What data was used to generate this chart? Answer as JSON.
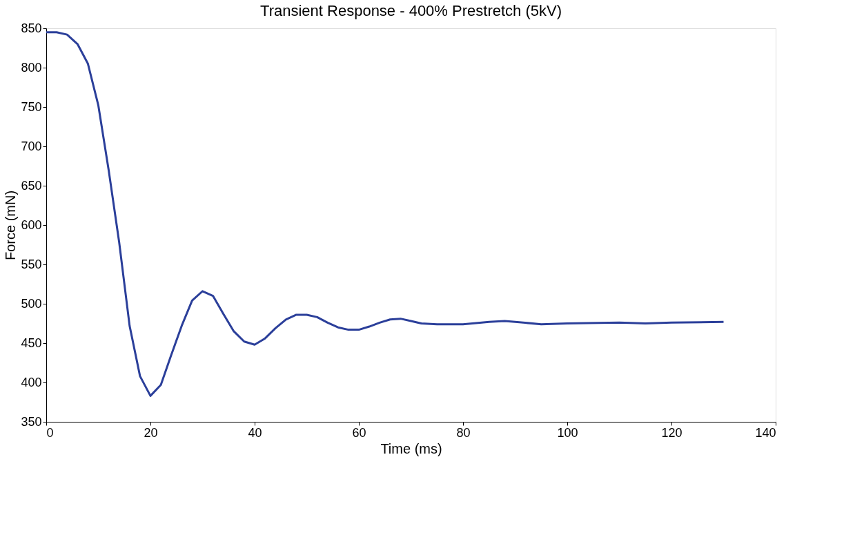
{
  "chart_data": {
    "type": "line",
    "title": "Transient Response - 400% Prestretch (5kV)",
    "xlabel": "Time (ms)",
    "ylabel": "Force (mN)",
    "x": [
      0,
      2,
      4,
      6,
      8,
      10,
      12,
      14,
      16,
      18,
      20,
      22,
      24,
      26,
      28,
      30,
      32,
      34,
      36,
      38,
      40,
      42,
      44,
      46,
      48,
      50,
      52,
      54,
      56,
      58,
      60,
      62,
      64,
      66,
      68,
      70,
      72,
      75,
      80,
      85,
      88,
      90,
      95,
      100,
      110,
      115,
      120,
      130
    ],
    "series": [
      {
        "color": "#2b3f9a",
        "values": [
          845,
          845,
          842,
          830,
          805,
          752,
          669,
          578,
          472,
          408,
          383,
          397,
          435,
          472,
          504,
          516,
          510,
          487,
          465,
          452,
          448,
          456,
          469,
          480,
          486,
          486,
          483,
          476,
          470,
          467,
          467,
          471,
          476,
          480,
          481,
          478,
          475,
          474,
          474,
          477,
          478,
          477,
          474,
          475,
          476,
          475,
          476,
          477
        ]
      }
    ],
    "xlim": [
      0,
      140
    ],
    "xticks": [
      0,
      20,
      40,
      60,
      80,
      100,
      120,
      140
    ],
    "ylim": [
      350,
      850
    ],
    "yticks": [
      350,
      400,
      450,
      500,
      550,
      600,
      650,
      700,
      750,
      800,
      850
    ],
    "grid": false,
    "marker": "none",
    "line_style": "solid"
  }
}
